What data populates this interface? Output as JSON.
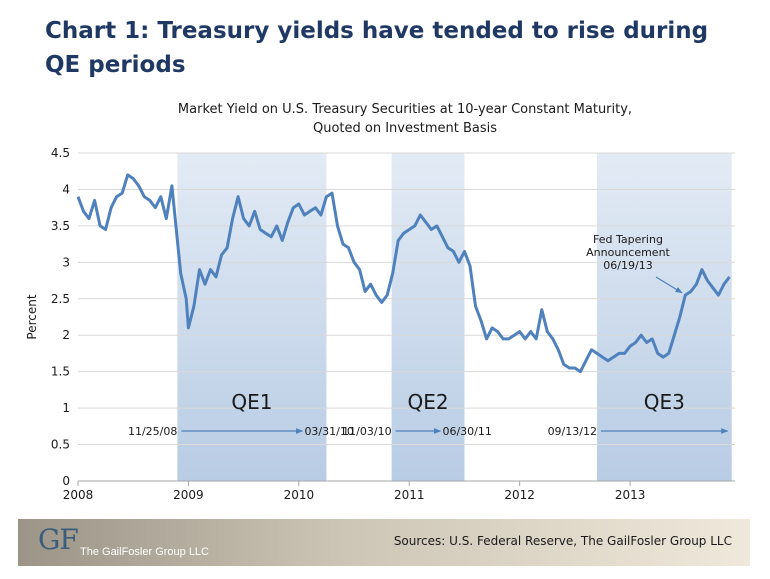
{
  "slide_title": "Chart 1:  Treasury yields have tended to rise during QE periods",
  "footer": {
    "logo_text": "GF",
    "company_name": "The GailFosler Group LLC",
    "sources": "Sources: U.S. Federal Reserve, The GailFosler Group LLC"
  },
  "chart_data": {
    "type": "line",
    "title_lines": [
      "Market Yield on U.S. Treasury Securities at 10-year Constant Maturity,",
      "Quoted on Investment Basis"
    ],
    "xlabel": "",
    "ylabel": "Percent",
    "xlim": [
      2008,
      2013.95
    ],
    "ylim": [
      0,
      4.5
    ],
    "y_ticks": [
      "0",
      "0.5",
      "1",
      "1.5",
      "2",
      "2.5",
      "3",
      "3.5",
      "4",
      "4.5"
    ],
    "x_ticks": [
      "2008",
      "2009",
      "2010",
      "2011",
      "2012",
      "2013"
    ],
    "grid": true,
    "colors": {
      "line": "#4f81bd",
      "shade": "#b8cce4",
      "axis_text": "#1a1a1a",
      "arrow": "#4f81bd"
    },
    "series": [
      {
        "values": [
          [
            2008.0,
            3.9
          ],
          [
            2008.05,
            3.7
          ],
          [
            2008.1,
            3.6
          ],
          [
            2008.15,
            3.85
          ],
          [
            2008.2,
            3.5
          ],
          [
            2008.25,
            3.45
          ],
          [
            2008.3,
            3.75
          ],
          [
            2008.35,
            3.9
          ],
          [
            2008.4,
            3.95
          ],
          [
            2008.45,
            4.2
          ],
          [
            2008.5,
            4.15
          ],
          [
            2008.55,
            4.05
          ],
          [
            2008.6,
            3.9
          ],
          [
            2008.65,
            3.85
          ],
          [
            2008.7,
            3.75
          ],
          [
            2008.75,
            3.9
          ],
          [
            2008.8,
            3.6
          ],
          [
            2008.85,
            4.05
          ],
          [
            2008.9,
            3.3
          ],
          [
            2008.93,
            2.85
          ],
          [
            2008.98,
            2.5
          ],
          [
            2009.0,
            2.1
          ],
          [
            2009.05,
            2.4
          ],
          [
            2009.1,
            2.9
          ],
          [
            2009.15,
            2.7
          ],
          [
            2009.2,
            2.9
          ],
          [
            2009.25,
            2.8
          ],
          [
            2009.3,
            3.1
          ],
          [
            2009.35,
            3.2
          ],
          [
            2009.4,
            3.6
          ],
          [
            2009.45,
            3.9
          ],
          [
            2009.5,
            3.6
          ],
          [
            2009.55,
            3.5
          ],
          [
            2009.6,
            3.7
          ],
          [
            2009.65,
            3.45
          ],
          [
            2009.7,
            3.4
          ],
          [
            2009.75,
            3.35
          ],
          [
            2009.8,
            3.5
          ],
          [
            2009.85,
            3.3
          ],
          [
            2009.9,
            3.55
          ],
          [
            2009.95,
            3.75
          ],
          [
            2010.0,
            3.8
          ],
          [
            2010.05,
            3.65
          ],
          [
            2010.1,
            3.7
          ],
          [
            2010.15,
            3.75
          ],
          [
            2010.2,
            3.65
          ],
          [
            2010.25,
            3.9
          ],
          [
            2010.3,
            3.95
          ],
          [
            2010.35,
            3.5
          ],
          [
            2010.4,
            3.25
          ],
          [
            2010.45,
            3.2
          ],
          [
            2010.5,
            3.0
          ],
          [
            2010.55,
            2.9
          ],
          [
            2010.6,
            2.6
          ],
          [
            2010.65,
            2.7
          ],
          [
            2010.7,
            2.55
          ],
          [
            2010.75,
            2.45
          ],
          [
            2010.8,
            2.55
          ],
          [
            2010.85,
            2.85
          ],
          [
            2010.9,
            3.3
          ],
          [
            2010.95,
            3.4
          ],
          [
            2011.0,
            3.45
          ],
          [
            2011.05,
            3.5
          ],
          [
            2011.1,
            3.65
          ],
          [
            2011.15,
            3.55
          ],
          [
            2011.2,
            3.45
          ],
          [
            2011.25,
            3.5
          ],
          [
            2011.3,
            3.35
          ],
          [
            2011.35,
            3.2
          ],
          [
            2011.4,
            3.15
          ],
          [
            2011.45,
            3.0
          ],
          [
            2011.5,
            3.15
          ],
          [
            2011.55,
            2.95
          ],
          [
            2011.6,
            2.4
          ],
          [
            2011.65,
            2.2
          ],
          [
            2011.7,
            1.95
          ],
          [
            2011.75,
            2.1
          ],
          [
            2011.8,
            2.05
          ],
          [
            2011.85,
            1.95
          ],
          [
            2011.9,
            1.95
          ],
          [
            2011.95,
            2.0
          ],
          [
            2012.0,
            2.05
          ],
          [
            2012.05,
            1.95
          ],
          [
            2012.1,
            2.05
          ],
          [
            2012.15,
            1.95
          ],
          [
            2012.2,
            2.35
          ],
          [
            2012.25,
            2.05
          ],
          [
            2012.3,
            1.95
          ],
          [
            2012.35,
            1.8
          ],
          [
            2012.4,
            1.6
          ],
          [
            2012.45,
            1.55
          ],
          [
            2012.5,
            1.55
          ],
          [
            2012.55,
            1.5
          ],
          [
            2012.6,
            1.65
          ],
          [
            2012.65,
            1.8
          ],
          [
            2012.7,
            1.75
          ],
          [
            2012.75,
            1.7
          ],
          [
            2012.8,
            1.65
          ],
          [
            2012.85,
            1.7
          ],
          [
            2012.9,
            1.75
          ],
          [
            2012.95,
            1.75
          ],
          [
            2013.0,
            1.85
          ],
          [
            2013.05,
            1.9
          ],
          [
            2013.1,
            2.0
          ],
          [
            2013.15,
            1.9
          ],
          [
            2013.2,
            1.95
          ],
          [
            2013.25,
            1.75
          ],
          [
            2013.3,
            1.7
          ],
          [
            2013.35,
            1.75
          ],
          [
            2013.4,
            2.0
          ],
          [
            2013.45,
            2.25
          ],
          [
            2013.5,
            2.55
          ],
          [
            2013.55,
            2.6
          ],
          [
            2013.6,
            2.7
          ],
          [
            2013.65,
            2.9
          ],
          [
            2013.7,
            2.75
          ],
          [
            2013.75,
            2.65
          ],
          [
            2013.8,
            2.55
          ],
          [
            2013.85,
            2.7
          ],
          [
            2013.9,
            2.8
          ]
        ]
      }
    ],
    "shaded_periods": [
      {
        "label": "QE1",
        "start": 2008.9,
        "end": 2010.25,
        "start_label": "11/25/08",
        "end_label": "03/31/10"
      },
      {
        "label": "QE2",
        "start": 2010.84,
        "end": 2011.5,
        "start_label": "11/03/10",
        "end_label": "06/30/11"
      },
      {
        "label": "QE3",
        "start": 2012.7,
        "end": 2013.92,
        "start_label": "09/13/12",
        "end_label": ""
      }
    ],
    "annotation": {
      "lines": [
        "Fed Tapering",
        "Announcement",
        "06/19/13"
      ],
      "x": 2013.47,
      "y": 2.5
    }
  }
}
